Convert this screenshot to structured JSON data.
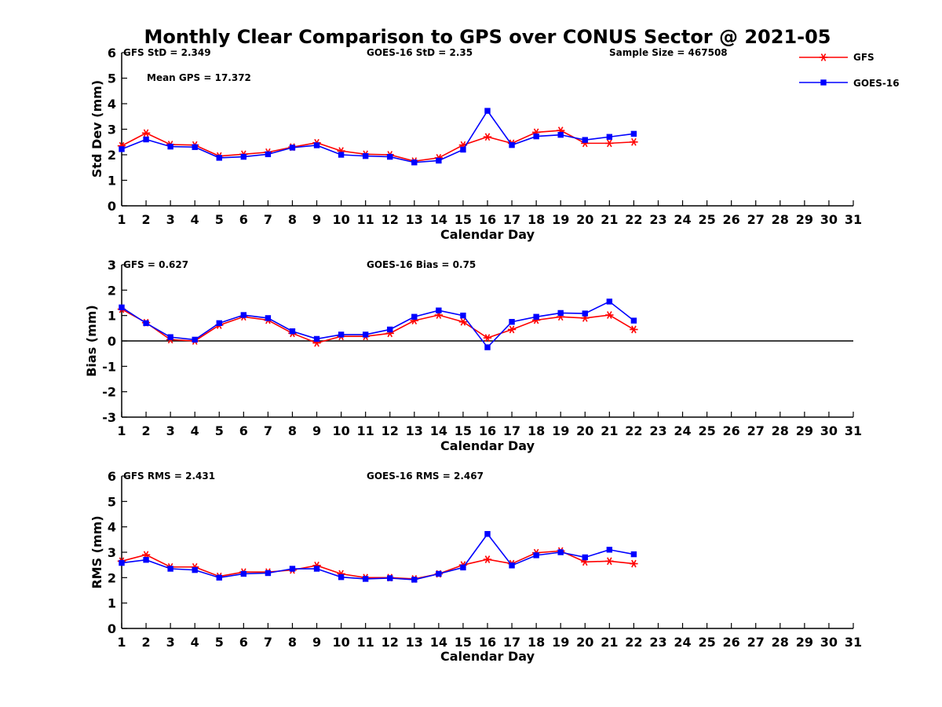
{
  "title": "Monthly Clear Comparison to GPS over CONUS Sector @ 2021-05",
  "legend": {
    "placement": "top-right",
    "items": [
      {
        "name": "GFS",
        "color": "#ff0000",
        "marker": "asterisk"
      },
      {
        "name": "GOES-16",
        "color": "#0000ff",
        "marker": "square"
      }
    ]
  },
  "chart_data": [
    {
      "type": "line",
      "ylabel": "Std Dev (mm)",
      "xlabel": "Calendar Day",
      "xlim": [
        1,
        31
      ],
      "ylim": [
        0,
        6
      ],
      "xticks": [
        1,
        2,
        3,
        4,
        5,
        6,
        7,
        8,
        9,
        10,
        11,
        12,
        13,
        14,
        15,
        16,
        17,
        18,
        19,
        20,
        21,
        22,
        23,
        24,
        25,
        26,
        27,
        28,
        29,
        30,
        31
      ],
      "yticks": [
        0,
        1,
        2,
        3,
        4,
        5,
        6
      ],
      "zero_line": false,
      "annotations": [
        {
          "id": "gfs",
          "text": "GFS StD = 2.349"
        },
        {
          "id": "goes",
          "text": "GOES-16 StD = 2.35"
        },
        {
          "id": "sample",
          "text": "Sample Size = 467508"
        },
        {
          "id": "mean",
          "text": "Mean GPS = 17.372"
        }
      ],
      "x": [
        1,
        2,
        3,
        4,
        5,
        6,
        7,
        8,
        9,
        10,
        11,
        12,
        13,
        14,
        15,
        16,
        17,
        18,
        19,
        20,
        21,
        22
      ],
      "series": [
        {
          "name": "GFS",
          "values": [
            2.35,
            2.85,
            2.4,
            2.38,
            1.95,
            2.02,
            2.1,
            2.3,
            2.47,
            2.15,
            2.02,
            2.0,
            1.75,
            1.88,
            2.38,
            2.7,
            2.45,
            2.88,
            2.95,
            2.45,
            2.45,
            2.5
          ]
        },
        {
          "name": "GOES-16",
          "values": [
            2.22,
            2.6,
            2.32,
            2.3,
            1.88,
            1.92,
            2.02,
            2.28,
            2.37,
            2.0,
            1.95,
            1.92,
            1.7,
            1.77,
            2.2,
            3.72,
            2.38,
            2.72,
            2.78,
            2.58,
            2.7,
            2.82
          ]
        }
      ]
    },
    {
      "type": "line",
      "ylabel": "Bias (mm)",
      "xlabel": "Calendar Day",
      "xlim": [
        1,
        31
      ],
      "ylim": [
        -3,
        3
      ],
      "xticks": [
        1,
        2,
        3,
        4,
        5,
        6,
        7,
        8,
        9,
        10,
        11,
        12,
        13,
        14,
        15,
        16,
        17,
        18,
        19,
        20,
        21,
        22,
        23,
        24,
        25,
        26,
        27,
        28,
        29,
        30,
        31
      ],
      "yticks": [
        -3,
        -2,
        -1,
        0,
        1,
        2,
        3
      ],
      "zero_line": true,
      "annotations": [
        {
          "id": "gfs",
          "text": "GFS = 0.627"
        },
        {
          "id": "goes",
          "text": "GOES-16 Bias = 0.75"
        }
      ],
      "x": [
        1,
        2,
        3,
        4,
        5,
        6,
        7,
        8,
        9,
        10,
        11,
        12,
        13,
        14,
        15,
        16,
        17,
        18,
        19,
        20,
        21,
        22
      ],
      "series": [
        {
          "name": "GFS",
          "values": [
            1.25,
            0.72,
            0.05,
            0.0,
            0.62,
            0.95,
            0.82,
            0.3,
            -0.08,
            0.18,
            0.18,
            0.3,
            0.8,
            1.02,
            0.75,
            0.12,
            0.45,
            0.82,
            0.95,
            0.9,
            1.02,
            0.45
          ]
        },
        {
          "name": "GOES-16",
          "values": [
            1.32,
            0.7,
            0.15,
            0.05,
            0.7,
            1.02,
            0.9,
            0.38,
            0.08,
            0.25,
            0.25,
            0.45,
            0.95,
            1.2,
            1.0,
            -0.25,
            0.75,
            0.95,
            1.1,
            1.08,
            1.55,
            0.8
          ]
        }
      ]
    },
    {
      "type": "line",
      "ylabel": "RMS (mm)",
      "xlabel": "Calendar Day",
      "xlim": [
        1,
        31
      ],
      "ylim": [
        0,
        6
      ],
      "xticks": [
        1,
        2,
        3,
        4,
        5,
        6,
        7,
        8,
        9,
        10,
        11,
        12,
        13,
        14,
        15,
        16,
        17,
        18,
        19,
        20,
        21,
        22,
        23,
        24,
        25,
        26,
        27,
        28,
        29,
        30,
        31
      ],
      "yticks": [
        0,
        1,
        2,
        3,
        4,
        5,
        6
      ],
      "zero_line": false,
      "annotations": [
        {
          "id": "gfs",
          "text": "GFS RMS = 2.431"
        },
        {
          "id": "goes",
          "text": "GOES-16 RMS = 2.467"
        }
      ],
      "x": [
        1,
        2,
        3,
        4,
        5,
        6,
        7,
        8,
        9,
        10,
        11,
        12,
        13,
        14,
        15,
        16,
        17,
        18,
        19,
        20,
        21,
        22
      ],
      "series": [
        {
          "name": "GFS",
          "values": [
            2.65,
            2.9,
            2.42,
            2.42,
            2.05,
            2.22,
            2.22,
            2.3,
            2.48,
            2.15,
            2.0,
            2.0,
            1.95,
            2.15,
            2.5,
            2.72,
            2.55,
            2.98,
            3.05,
            2.62,
            2.65,
            2.55
          ]
        },
        {
          "name": "GOES-16",
          "values": [
            2.58,
            2.7,
            2.35,
            2.3,
            2.0,
            2.15,
            2.18,
            2.35,
            2.35,
            2.02,
            1.95,
            1.98,
            1.92,
            2.15,
            2.4,
            3.72,
            2.48,
            2.88,
            3.0,
            2.8,
            3.1,
            2.92
          ]
        }
      ]
    }
  ]
}
